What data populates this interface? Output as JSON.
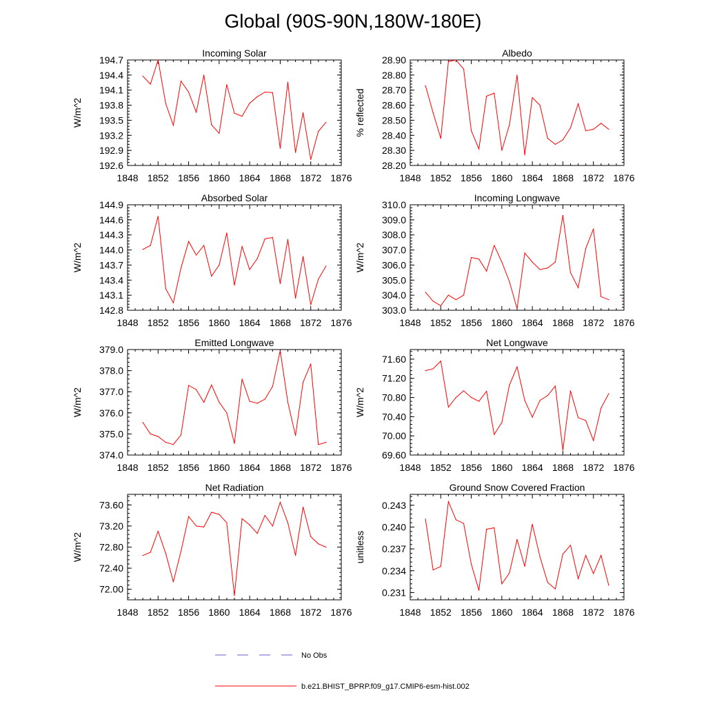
{
  "title": "Global (90S-90N,180W-180E)",
  "legend": [
    {
      "label": "No Obs",
      "color": "#6060c8",
      "style": "dashed"
    },
    {
      "label": "b.e21.BHIST_BPRP.f09_g17.CMIP6-esm-hist.002",
      "color": "#ff0000",
      "style": "solid"
    }
  ],
  "chart_data": [
    {
      "type": "line",
      "title": "Incoming Solar",
      "xlabel": "",
      "ylabel": "W/m^2",
      "xlim": [
        1848,
        1876
      ],
      "ylim": [
        192.6,
        194.7
      ],
      "xticks": [
        1848,
        1852,
        1856,
        1860,
        1864,
        1868,
        1872,
        1876
      ],
      "xtick_labels": [
        "1848",
        "1852",
        "1856",
        "1860",
        "1864",
        "1868",
        "1872",
        "1876"
      ],
      "yticks": [
        192.6,
        192.9,
        193.2,
        193.5,
        193.8,
        194.1,
        194.4,
        194.7
      ],
      "ytick_labels": [
        "192.6",
        "192.9",
        "193.2",
        "193.5",
        "193.8",
        "194.1",
        "194.4",
        "194.7"
      ],
      "x": [
        1850,
        1851,
        1852,
        1853,
        1854,
        1855,
        1856,
        1857,
        1858,
        1859,
        1860,
        1861,
        1862,
        1863,
        1864,
        1865,
        1866,
        1867,
        1868,
        1869,
        1870,
        1871,
        1872,
        1873,
        1874
      ],
      "series": [
        {
          "name": "b.e21.BHIST_BPRP.f09_g17.CMIP6-esm-hist.002",
          "values": [
            194.38,
            194.22,
            194.7,
            193.83,
            193.4,
            194.28,
            194.06,
            193.66,
            194.4,
            193.41,
            193.24,
            194.21,
            193.64,
            193.58,
            193.84,
            193.97,
            194.06,
            194.05,
            192.94,
            194.26,
            192.86,
            193.65,
            192.72,
            193.28,
            193.46
          ]
        }
      ]
    },
    {
      "type": "line",
      "title": "Albedo",
      "xlabel": "",
      "ylabel": "% reflected",
      "xlim": [
        1848,
        1876
      ],
      "ylim": [
        28.2,
        28.9
      ],
      "xticks": [
        1848,
        1852,
        1856,
        1860,
        1864,
        1868,
        1872,
        1876
      ],
      "xtick_labels": [
        "1848",
        "1852",
        "1856",
        "1860",
        "1864",
        "1868",
        "1872",
        "1876"
      ],
      "yticks": [
        28.2,
        28.3,
        28.4,
        28.5,
        28.6,
        28.7,
        28.8,
        28.9
      ],
      "ytick_labels": [
        "28.20",
        "28.30",
        "28.40",
        "28.50",
        "28.60",
        "28.70",
        "28.80",
        "28.90"
      ],
      "x": [
        1850,
        1851,
        1852,
        1853,
        1854,
        1855,
        1856,
        1857,
        1858,
        1859,
        1860,
        1861,
        1862,
        1863,
        1864,
        1865,
        1866,
        1867,
        1868,
        1869,
        1870,
        1871,
        1872,
        1873,
        1874
      ],
      "series": [
        {
          "name": "b.e21.BHIST_BPRP.f09_g17.CMIP6-esm-hist.002",
          "values": [
            28.73,
            28.55,
            28.38,
            28.89,
            28.9,
            28.84,
            28.43,
            28.31,
            28.66,
            28.68,
            28.3,
            28.47,
            28.8,
            28.27,
            28.65,
            28.6,
            28.38,
            28.34,
            28.37,
            28.45,
            28.61,
            28.43,
            28.44,
            28.48,
            28.44
          ]
        }
      ]
    },
    {
      "type": "line",
      "title": "Absorbed Solar",
      "xlabel": "",
      "ylabel": "W/m^2",
      "xlim": [
        1848,
        1876
      ],
      "ylim": [
        142.8,
        144.9
      ],
      "xticks": [
        1848,
        1852,
        1856,
        1860,
        1864,
        1868,
        1872,
        1876
      ],
      "xtick_labels": [
        "1848",
        "1852",
        "1856",
        "1860",
        "1864",
        "1868",
        "1872",
        "1876"
      ],
      "yticks": [
        142.8,
        143.1,
        143.4,
        143.7,
        144.0,
        144.3,
        144.6,
        144.9
      ],
      "ytick_labels": [
        "142.8",
        "143.1",
        "143.4",
        "143.7",
        "144.0",
        "144.3",
        "144.6",
        "144.9"
      ],
      "x": [
        1850,
        1851,
        1852,
        1853,
        1854,
        1855,
        1856,
        1857,
        1858,
        1859,
        1860,
        1861,
        1862,
        1863,
        1864,
        1865,
        1866,
        1867,
        1868,
        1869,
        1870,
        1871,
        1872,
        1873,
        1874
      ],
      "series": [
        {
          "name": "b.e21.BHIST_BPRP.f09_g17.CMIP6-esm-hist.002",
          "values": [
            144.01,
            144.09,
            144.67,
            143.23,
            142.95,
            143.64,
            144.17,
            143.9,
            144.09,
            143.48,
            143.7,
            144.34,
            143.3,
            144.07,
            143.61,
            143.83,
            144.22,
            144.25,
            143.33,
            144.21,
            143.04,
            143.87,
            142.91,
            143.42,
            143.68
          ]
        }
      ]
    },
    {
      "type": "line",
      "title": "Incoming Longwave",
      "xlabel": "",
      "ylabel": "W/m^2",
      "xlim": [
        1848,
        1876
      ],
      "ylim": [
        303.0,
        310.0
      ],
      "xticks": [
        1848,
        1852,
        1856,
        1860,
        1864,
        1868,
        1872,
        1876
      ],
      "xtick_labels": [
        "1848",
        "1852",
        "1856",
        "1860",
        "1864",
        "1868",
        "1872",
        "1876"
      ],
      "yticks": [
        303,
        304,
        305,
        306,
        307,
        308,
        309,
        310
      ],
      "ytick_labels": [
        "303.0",
        "304.0",
        "305.0",
        "306.0",
        "307.0",
        "308.0",
        "309.0",
        "310.0"
      ],
      "x": [
        1850,
        1851,
        1852,
        1853,
        1854,
        1855,
        1856,
        1857,
        1858,
        1859,
        1860,
        1861,
        1862,
        1863,
        1864,
        1865,
        1866,
        1867,
        1868,
        1869,
        1870,
        1871,
        1872,
        1873,
        1874
      ],
      "series": [
        {
          "name": "b.e21.BHIST_BPRP.f09_g17.CMIP6-esm-hist.002",
          "values": [
            304.2,
            303.6,
            303.3,
            304.0,
            303.7,
            304.0,
            306.5,
            306.4,
            305.6,
            307.3,
            306.2,
            304.9,
            303.1,
            306.8,
            306.2,
            305.7,
            305.8,
            306.2,
            309.3,
            305.5,
            304.5,
            307.1,
            308.4,
            303.9,
            303.7
          ]
        }
      ]
    },
    {
      "type": "line",
      "title": "Emitted Longwave",
      "xlabel": "",
      "ylabel": "W/m^2",
      "xlim": [
        1848,
        1876
      ],
      "ylim": [
        374.0,
        379.0
      ],
      "xticks": [
        1848,
        1852,
        1856,
        1860,
        1864,
        1868,
        1872,
        1876
      ],
      "xtick_labels": [
        "1848",
        "1852",
        "1856",
        "1860",
        "1864",
        "1868",
        "1872",
        "1876"
      ],
      "yticks": [
        374,
        375,
        376,
        377,
        378,
        379
      ],
      "ytick_labels": [
        "374.0",
        "375.0",
        "376.0",
        "377.0",
        "378.0",
        "379.0"
      ],
      "x": [
        1850,
        1851,
        1852,
        1853,
        1854,
        1855,
        1856,
        1857,
        1858,
        1859,
        1860,
        1861,
        1862,
        1863,
        1864,
        1865,
        1866,
        1867,
        1868,
        1869,
        1870,
        1871,
        1872,
        1873,
        1874
      ],
      "series": [
        {
          "name": "b.e21.BHIST_BPRP.f09_g17.CMIP6-esm-hist.002",
          "values": [
            375.55,
            375.0,
            374.88,
            374.6,
            374.5,
            374.95,
            377.3,
            377.1,
            376.5,
            377.32,
            376.5,
            376.0,
            374.55,
            377.6,
            376.55,
            376.45,
            376.65,
            377.25,
            378.95,
            376.5,
            374.92,
            377.45,
            378.32,
            374.5,
            374.6
          ]
        }
      ]
    },
    {
      "type": "line",
      "title": "Net Longwave",
      "xlabel": "",
      "ylabel": "W/m^2",
      "xlim": [
        1848,
        1876
      ],
      "ylim": [
        69.6,
        71.8
      ],
      "xticks": [
        1848,
        1852,
        1856,
        1860,
        1864,
        1868,
        1872,
        1876
      ],
      "xtick_labels": [
        "1848",
        "1852",
        "1856",
        "1860",
        "1864",
        "1868",
        "1872",
        "1876"
      ],
      "yticks": [
        69.6,
        70.0,
        70.4,
        70.8,
        71.2,
        71.6
      ],
      "ytick_labels": [
        "69.60",
        "70.00",
        "70.40",
        "70.80",
        "71.20",
        "71.60"
      ],
      "x": [
        1850,
        1851,
        1852,
        1853,
        1854,
        1855,
        1856,
        1857,
        1858,
        1859,
        1860,
        1861,
        1862,
        1863,
        1864,
        1865,
        1866,
        1867,
        1868,
        1869,
        1870,
        1871,
        1872,
        1873,
        1874
      ],
      "series": [
        {
          "name": "b.e21.BHIST_BPRP.f09_g17.CMIP6-esm-hist.002",
          "values": [
            71.36,
            71.4,
            71.56,
            70.6,
            70.8,
            70.94,
            70.8,
            70.72,
            70.93,
            70.03,
            70.28,
            71.06,
            71.44,
            70.74,
            70.39,
            70.74,
            70.84,
            71.04,
            69.7,
            70.94,
            70.38,
            70.32,
            69.9,
            70.58,
            70.88
          ]
        }
      ]
    },
    {
      "type": "line",
      "title": "Net Radiation",
      "xlabel": "",
      "ylabel": "W/m^2",
      "xlim": [
        1848,
        1876
      ],
      "ylim": [
        71.8,
        73.8
      ],
      "xticks": [
        1848,
        1852,
        1856,
        1860,
        1864,
        1868,
        1872,
        1876
      ],
      "xtick_labels": [
        "1848",
        "1852",
        "1856",
        "1860",
        "1864",
        "1868",
        "1872",
        "1876"
      ],
      "yticks": [
        72.0,
        72.4,
        72.8,
        73.2,
        73.6
      ],
      "ytick_labels": [
        "72.00",
        "72.40",
        "72.80",
        "73.20",
        "73.60"
      ],
      "x": [
        1850,
        1851,
        1852,
        1853,
        1854,
        1855,
        1856,
        1857,
        1858,
        1859,
        1860,
        1861,
        1862,
        1863,
        1864,
        1865,
        1866,
        1867,
        1868,
        1869,
        1870,
        1871,
        1872,
        1873,
        1874
      ],
      "series": [
        {
          "name": "b.e21.BHIST_BPRP.f09_g17.CMIP6-esm-hist.002",
          "values": [
            72.64,
            72.7,
            73.1,
            72.68,
            72.14,
            72.72,
            73.38,
            73.2,
            73.18,
            73.46,
            73.42,
            73.26,
            71.88,
            73.34,
            73.22,
            73.06,
            73.4,
            73.2,
            73.65,
            73.26,
            72.64,
            73.56,
            73.0,
            72.86,
            72.8
          ]
        }
      ]
    },
    {
      "type": "line",
      "title": "Ground Snow Covered Fraction",
      "xlabel": "",
      "ylabel": "unitless",
      "xlim": [
        1848,
        1876
      ],
      "ylim": [
        0.23,
        0.2445
      ],
      "xticks": [
        1848,
        1852,
        1856,
        1860,
        1864,
        1868,
        1872,
        1876
      ],
      "xtick_labels": [
        "1848",
        "1852",
        "1856",
        "1860",
        "1864",
        "1868",
        "1872",
        "1876"
      ],
      "yticks": [
        0.231,
        0.234,
        0.237,
        0.24,
        0.243
      ],
      "ytick_labels": [
        "0.231",
        "0.234",
        "0.237",
        "0.240",
        "0.243"
      ],
      "x": [
        1850,
        1851,
        1852,
        1853,
        1854,
        1855,
        1856,
        1857,
        1858,
        1859,
        1860,
        1861,
        1862,
        1863,
        1864,
        1865,
        1866,
        1867,
        1868,
        1869,
        1870,
        1871,
        1872,
        1873,
        1874
      ],
      "series": [
        {
          "name": "b.e21.BHIST_BPRP.f09_g17.CMIP6-esm-hist.002",
          "values": [
            0.2411,
            0.2341,
            0.2346,
            0.2435,
            0.241,
            0.2405,
            0.2349,
            0.2313,
            0.2397,
            0.2399,
            0.2322,
            0.2337,
            0.2383,
            0.2346,
            0.2404,
            0.2359,
            0.2324,
            0.2315,
            0.2363,
            0.2375,
            0.2329,
            0.2361,
            0.2336,
            0.2361,
            0.232
          ]
        }
      ]
    }
  ]
}
